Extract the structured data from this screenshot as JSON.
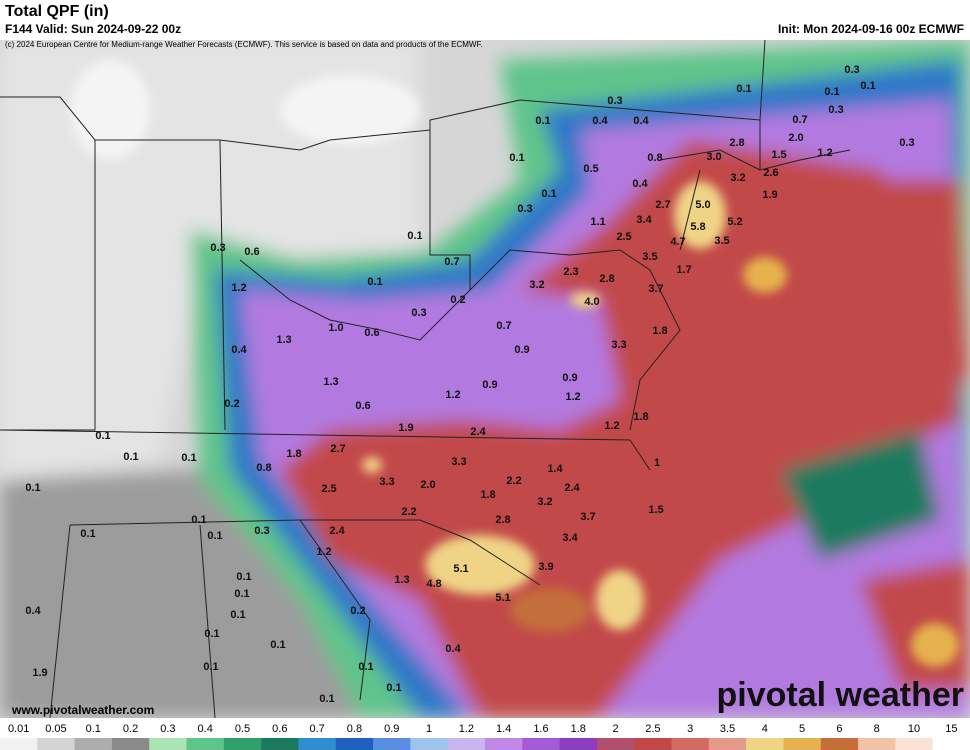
{
  "header": {
    "title": "Total QPF (in)",
    "valid": "F144 Valid: Sun 2024-09-22 00z",
    "copyright": "(c) 2024 European Centre for Medium-range Weather Forecasts (ECMWF). This service is based on data and products of the ECMWF.",
    "init": "Init: Mon 2024-09-16 00z ECMWF"
  },
  "footer": {
    "website": "www.pivotalweather.com",
    "brand": "pivotal weather"
  },
  "colorbar": {
    "levels": [
      0.01,
      0.05,
      0.1,
      0.2,
      0.3,
      0.4,
      0.5,
      0.6,
      0.7,
      0.8,
      0.9,
      1,
      1.2,
      1.4,
      1.6,
      1.8,
      2,
      2.5,
      3,
      3.5,
      4,
      5,
      6,
      8,
      10,
      15
    ],
    "colors": [
      "#f2f2f2",
      "#d4d4d4",
      "#adadad",
      "#8a8a8a",
      "#a8e4b4",
      "#5fc48a",
      "#2f9f6e",
      "#1b7a5e",
      "#2e8fd0",
      "#1f5fbf",
      "#5a8ee0",
      "#9cc4ee",
      "#c9b6ee",
      "#c188e6",
      "#a75ad8",
      "#8e3cc2",
      "#b0506c",
      "#c24848",
      "#d46a62",
      "#e29a8a",
      "#f0d486",
      "#e6b24e",
      "#c46e3a",
      "#f2c2a4",
      "#fae2d4",
      "#ffffff"
    ]
  },
  "map_labels": [
    "0.3",
    "0.1",
    "0.1",
    "0.1",
    "0.3",
    "0.1",
    "0.4",
    "0.4",
    "0.7",
    "0.3",
    "2.8",
    "2.0",
    "0.1",
    "0.5",
    "0.8",
    "3.0",
    "1.5",
    "1.2",
    "0.3",
    "3.2",
    "2.6",
    "0.4",
    "0.1",
    "1.9",
    "0.3",
    "2.7",
    "5.0",
    "3.4",
    "1.1",
    "5.8",
    "5.2",
    "0.1",
    "2.5",
    "4.7",
    "3.5",
    "0.3",
    "0.6",
    "0.7",
    "2.3",
    "3.5",
    "1.7",
    "0.1",
    "2.8",
    "3.2",
    "1.2",
    "3.7",
    "4.0",
    "0.2",
    "0.3",
    "0.7",
    "1.8",
    "1.0",
    "0.6",
    "1.3",
    "3.3",
    "0.4",
    "0.9",
    "1.3",
    "0.9",
    "0.9",
    "1.2",
    "1.2",
    "0.2",
    "0.6",
    "1.8",
    "1.2",
    "1.9",
    "2.4",
    "0.1",
    "2.7",
    "1.8",
    "0.1",
    "0.1",
    "0.8",
    "3.3",
    "1.4",
    "1",
    "3.3",
    "2.0",
    "2.2",
    "2.4",
    "0.1",
    "2.5",
    "1.8",
    "3.2",
    "1.5",
    "2.2",
    "0.1",
    "2.8",
    "3.7",
    "0.1",
    "0.1",
    "0.3",
    "2.4",
    "3.4",
    "1.2",
    "5.1",
    "3.9",
    "0.1",
    "1.3",
    "4.8",
    "0.1",
    "5.1",
    "0.4",
    "0.2",
    "0.1",
    "0.1",
    "0.1",
    "0.4",
    "0.1",
    "0.1",
    "1.9",
    "0.1",
    "0.1"
  ]
}
